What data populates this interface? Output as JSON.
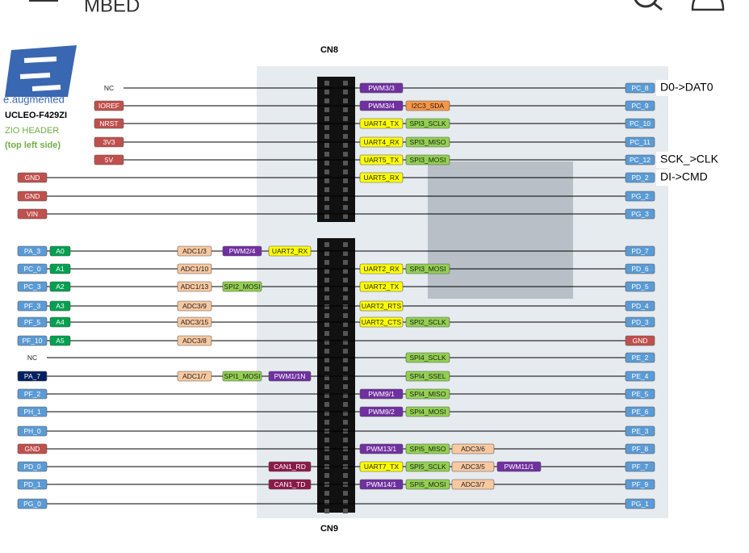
{
  "header": {
    "title": "MBED"
  },
  "logo": {
    "tagline": "e.augmented",
    "board": "UCLEO-F429ZI",
    "header_name": "ZIO HEADER",
    "side": "(top left side)"
  },
  "connectors": {
    "top": "CN8",
    "bottom": "CN9"
  },
  "rows": [
    {
      "left_power": {
        "text": "NC",
        "color": null
      },
      "right_funcs": [
        {
          "text": "PWM3/3",
          "color": "#7030a0"
        }
      ],
      "right_pin": {
        "text": "PC_8",
        "color": "#5b9bd5"
      },
      "note": "D0->DAT0"
    },
    {
      "left_power": {
        "text": "IOREF",
        "color": "#c0504d"
      },
      "right_funcs": [
        {
          "text": "PWM3/4",
          "color": "#7030a0"
        },
        {
          "text": "I2C3_SDA",
          "color": "#f79646"
        }
      ],
      "right_pin": {
        "text": "PC_9",
        "color": "#5b9bd5"
      }
    },
    {
      "left_power": {
        "text": "NRST",
        "color": "#c0504d"
      },
      "right_funcs": [
        {
          "text": "UART4_TX",
          "color": "#ffff00"
        },
        {
          "text": "SPI3_SCLK",
          "color": "#92d050"
        }
      ],
      "right_pin": {
        "text": "PC_10",
        "color": "#5b9bd5"
      }
    },
    {
      "left_power": {
        "text": "3V3",
        "color": "#c0504d"
      },
      "right_funcs": [
        {
          "text": "UART4_RX",
          "color": "#ffff00"
        },
        {
          "text": "SPI3_MISO",
          "color": "#92d050"
        }
      ],
      "right_pin": {
        "text": "PC_11",
        "color": "#5b9bd5"
      }
    },
    {
      "left_power": {
        "text": "5V",
        "color": "#c0504d"
      },
      "right_funcs": [
        {
          "text": "UART5_TX",
          "color": "#ffff00"
        },
        {
          "text": "SPI3_MOSI",
          "color": "#92d050"
        }
      ],
      "right_pin": {
        "text": "PC_12",
        "color": "#5b9bd5"
      },
      "note": "SCK_>CLK"
    },
    {
      "left_pin": {
        "text": "GND",
        "color": "#c0504d"
      },
      "right_funcs": [
        {
          "text": "UART5_RX",
          "color": "#ffff00"
        }
      ],
      "right_pin": {
        "text": "PD_2",
        "color": "#5b9bd5"
      },
      "note": "DI->CMD"
    },
    {
      "left_pin": {
        "text": "GND",
        "color": "#c0504d"
      },
      "right_funcs": [],
      "right_pin": {
        "text": "PG_2",
        "color": "#5b9bd5"
      }
    },
    {
      "left_pin": {
        "text": "VIN",
        "color": "#c0504d"
      },
      "right_funcs": [],
      "right_pin": {
        "text": "PG_3",
        "color": "#5b9bd5"
      }
    },
    {
      "left_pin": {
        "text": "PA_3",
        "color": "#5b9bd5"
      },
      "left_arduino": {
        "text": "A0",
        "color": "#00a050"
      },
      "left_funcs": [
        {
          "text": "ADC1/3",
          "color": "#f8c8a0"
        },
        {
          "text": "PWM2/4",
          "color": "#7030a0"
        },
        {
          "text": "UART2_RX",
          "color": "#ffff00"
        }
      ],
      "right_funcs": [],
      "right_pin": {
        "text": "PD_7",
        "color": "#5b9bd5"
      }
    },
    {
      "left_pin": {
        "text": "PC_0",
        "color": "#5b9bd5"
      },
      "left_arduino": {
        "text": "A1",
        "color": "#00a050"
      },
      "left_funcs": [
        {
          "text": "ADC1/10",
          "color": "#f8c8a0"
        }
      ],
      "right_funcs": [
        {
          "text": "UART2_RX",
          "color": "#ffff00"
        },
        {
          "text": "SPI3_MOSI",
          "color": "#92d050"
        }
      ],
      "right_pin": {
        "text": "PD_6",
        "color": "#5b9bd5"
      }
    },
    {
      "left_pin": {
        "text": "PC_3",
        "color": "#5b9bd5"
      },
      "left_arduino": {
        "text": "A2",
        "color": "#00a050"
      },
      "left_funcs": [
        {
          "text": "ADC1/13",
          "color": "#f8c8a0"
        },
        {
          "text": "SPI2_MOSI",
          "color": "#92d050"
        }
      ],
      "right_funcs": [
        {
          "text": "UART2_TX",
          "color": "#ffff00"
        }
      ],
      "right_pin": {
        "text": "PD_5",
        "color": "#5b9bd5"
      }
    },
    {
      "left_pin": {
        "text": "PF_3",
        "color": "#5b9bd5"
      },
      "left_arduino": {
        "text": "A3",
        "color": "#00a050"
      },
      "left_funcs": [
        {
          "text": "ADC3/9",
          "color": "#f8c8a0"
        }
      ],
      "right_funcs": [
        {
          "text": "UART2_RTS",
          "color": "#ffff00"
        }
      ],
      "right_pin": {
        "text": "PD_4",
        "color": "#5b9bd5"
      }
    },
    {
      "left_pin": {
        "text": "PF_5",
        "color": "#5b9bd5"
      },
      "left_arduino": {
        "text": "A4",
        "color": "#00a050"
      },
      "left_funcs": [
        {
          "text": "ADC3/15",
          "color": "#f8c8a0"
        }
      ],
      "right_funcs": [
        {
          "text": "UART2_CTS",
          "color": "#ffff00"
        },
        {
          "text": "SPI2_SCLK",
          "color": "#92d050"
        }
      ],
      "right_pin": {
        "text": "PD_3",
        "color": "#5b9bd5"
      }
    },
    {
      "left_pin": {
        "text": "PF_10",
        "color": "#5b9bd5"
      },
      "left_arduino": {
        "text": "A5",
        "color": "#00a050"
      },
      "left_funcs": [
        {
          "text": "ADC3/8",
          "color": "#f8c8a0"
        }
      ],
      "right_funcs": [],
      "right_pin": {
        "text": "GND",
        "color": "#c0504d"
      }
    },
    {
      "left_pin": {
        "text": "NC",
        "color": null
      },
      "right_funcs": [
        {
          "text": "SPI4_SCLK",
          "color": "#92d050"
        }
      ],
      "right_pin": {
        "text": "PE_2",
        "color": "#5b9bd5"
      }
    },
    {
      "left_pin": {
        "text": "PA_7",
        "color": "#002060"
      },
      "left_funcs": [
        {
          "text": "ADC1/7",
          "color": "#f8c8a0"
        },
        {
          "text": "SPI1_MOSI",
          "color": "#92d050"
        },
        {
          "text": "PWM1/1N",
          "color": "#7030a0"
        }
      ],
      "right_funcs": [
        {
          "text": "SPI4_SSEL",
          "color": "#92d050"
        }
      ],
      "right_pin": {
        "text": "PE_4",
        "color": "#5b9bd5"
      }
    },
    {
      "left_pin": {
        "text": "PF_2",
        "color": "#5b9bd5"
      },
      "right_funcs": [
        {
          "text": "PWM9/1",
          "color": "#7030a0"
        },
        {
          "text": "SPI4_MISO",
          "color": "#92d050"
        }
      ],
      "right_pin": {
        "text": "PE_5",
        "color": "#5b9bd5"
      }
    },
    {
      "left_pin": {
        "text": "PH_1",
        "color": "#5b9bd5"
      },
      "right_funcs": [
        {
          "text": "PWM9/2",
          "color": "#7030a0"
        },
        {
          "text": "SPI4_MOSI",
          "color": "#92d050"
        }
      ],
      "right_pin": {
        "text": "PE_6",
        "color": "#5b9bd5"
      }
    },
    {
      "left_pin": {
        "text": "PH_0",
        "color": "#5b9bd5"
      },
      "right_funcs": [],
      "right_pin": {
        "text": "PE_3",
        "color": "#5b9bd5"
      }
    },
    {
      "left_pin": {
        "text": "GND",
        "color": "#c0504d"
      },
      "right_funcs": [
        {
          "text": "PWM13/1",
          "color": "#7030a0"
        },
        {
          "text": "SPI5_MISO",
          "color": "#92d050"
        },
        {
          "text": "ADC3/6",
          "color": "#f8c8a0"
        }
      ],
      "right_pin": {
        "text": "PF_8",
        "color": "#5b9bd5"
      }
    },
    {
      "left_pin": {
        "text": "PD_0",
        "color": "#5b9bd5"
      },
      "left_funcs": [
        {
          "text": "CAN1_RD",
          "color": "#8b1a4a"
        }
      ],
      "right_funcs": [
        {
          "text": "UART7_TX",
          "color": "#ffff00"
        },
        {
          "text": "SPI5_SCLK",
          "color": "#92d050"
        },
        {
          "text": "ADC3/5",
          "color": "#f8c8a0"
        },
        {
          "text": "PWM11/1",
          "color": "#7030a0"
        }
      ],
      "right_pin": {
        "text": "PF_7",
        "color": "#5b9bd5"
      }
    },
    {
      "left_pin": {
        "text": "PD_1",
        "color": "#5b9bd5"
      },
      "left_funcs": [
        {
          "text": "CAN1_TD",
          "color": "#8b1a4a"
        }
      ],
      "right_funcs": [
        {
          "text": "PWM14/1",
          "color": "#7030a0"
        },
        {
          "text": "SPI5_MOSI",
          "color": "#92d050"
        },
        {
          "text": "ADC3/7",
          "color": "#f8c8a0"
        }
      ],
      "right_pin": {
        "text": "PF_9",
        "color": "#5b9bd5"
      }
    },
    {
      "left_pin": {
        "text": "PG_0",
        "color": "#5b9bd5"
      },
      "right_funcs": [],
      "right_pin": {
        "text": "PG_1",
        "color": "#5b9bd5"
      }
    }
  ]
}
